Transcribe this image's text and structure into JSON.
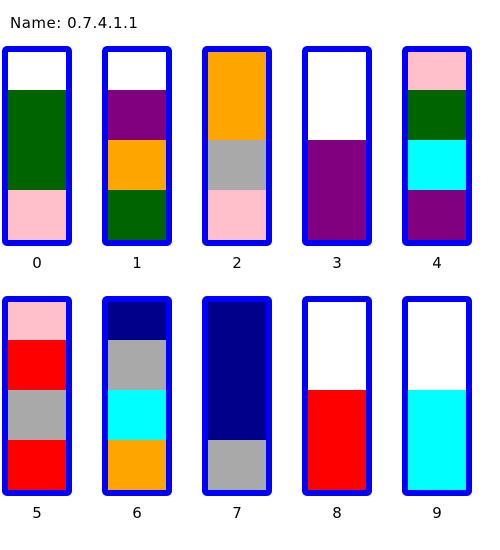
{
  "puzzle": {
    "name_label": "Name:",
    "name_value": "0.7.4.1.1"
  },
  "tube_capacity": 4,
  "colors": {
    "white": "#ffffff",
    "green": "#006400",
    "pink": "#ffc0cb",
    "purple": "#800080",
    "orange": "#ffa500",
    "gray": "#a9a9a9",
    "cyan": "#00ffff",
    "red": "#ff0000",
    "navy": "#00008b",
    "border": "#0000ff"
  },
  "tubes": [
    {
      "label": "0",
      "contents_bottom_to_top": [
        "pink",
        "green",
        "green"
      ]
    },
    {
      "label": "1",
      "contents_bottom_to_top": [
        "green",
        "orange",
        "purple"
      ]
    },
    {
      "label": "2",
      "contents_bottom_to_top": [
        "pink",
        "gray",
        "orange",
        "orange"
      ]
    },
    {
      "label": "3",
      "contents_bottom_to_top": [
        "purple",
        "purple"
      ]
    },
    {
      "label": "4",
      "contents_bottom_to_top": [
        "purple",
        "cyan",
        "green",
        "pink"
      ]
    },
    {
      "label": "5",
      "contents_bottom_to_top": [
        "red",
        "gray",
        "red",
        "pink"
      ]
    },
    {
      "label": "6",
      "contents_bottom_to_top": [
        "orange",
        "cyan",
        "gray",
        "navy"
      ]
    },
    {
      "label": "7",
      "contents_bottom_to_top": [
        "gray",
        "navy",
        "navy",
        "navy"
      ]
    },
    {
      "label": "8",
      "contents_bottom_to_top": [
        "red",
        "red"
      ]
    },
    {
      "label": "9",
      "contents_bottom_to_top": [
        "cyan",
        "cyan"
      ]
    }
  ]
}
